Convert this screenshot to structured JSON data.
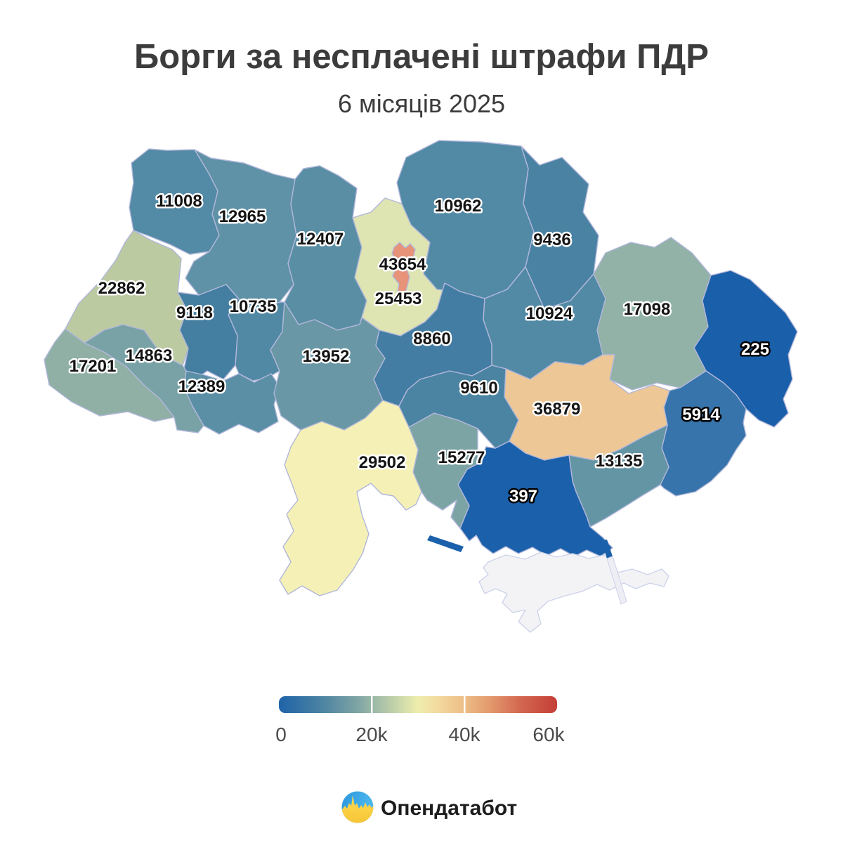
{
  "title": "Борги за несплачені штрафи ПДР",
  "subtitle": "6 місяців 2025",
  "chart_data": {
    "type": "heatmap",
    "variant": "choropleth-map-of-ukraine-oblasts",
    "title": "Борги за несплачені штрафи ПДР",
    "subtitle": "6 місяців 2025",
    "legend_position": "bottom-center",
    "regions": [
      {
        "id": "volyn",
        "value": 11008,
        "color": "#538aa5",
        "dark_bg": false
      },
      {
        "id": "rivne",
        "value": 12965,
        "color": "#5f92a6",
        "dark_bg": false
      },
      {
        "id": "zhytomyr",
        "value": 12407,
        "color": "#5a8ea5",
        "dark_bg": false
      },
      {
        "id": "kyiv-oblast",
        "value": 25453,
        "color": "#dee4b2",
        "dark_bg": false
      },
      {
        "id": "kyiv-city",
        "value": 43654,
        "color": "#e6937a",
        "dark_bg": false
      },
      {
        "id": "chernihiv",
        "value": 10962,
        "color": "#528aa6",
        "dark_bg": false
      },
      {
        "id": "sumy",
        "value": 9436,
        "color": "#4a82a3",
        "dark_bg": false
      },
      {
        "id": "lviv",
        "value": 22862,
        "color": "#bccaa2",
        "dark_bg": false
      },
      {
        "id": "ternopil",
        "value": 9118,
        "color": "#447ea1",
        "dark_bg": false
      },
      {
        "id": "khmelnytskyi",
        "value": 10735,
        "color": "#5189a5",
        "dark_bg": false
      },
      {
        "id": "zakarpattia",
        "value": 17201,
        "color": "#90b0a6",
        "dark_bg": false
      },
      {
        "id": "ivano-frankivsk",
        "value": 14863,
        "color": "#79a2a6",
        "dark_bg": false
      },
      {
        "id": "chernivtsi",
        "value": 12389,
        "color": "#5a8fa6",
        "dark_bg": false
      },
      {
        "id": "vinnytsia",
        "value": 13952,
        "color": "#6997a5",
        "dark_bg": false
      },
      {
        "id": "cherkasy",
        "value": 8860,
        "color": "#437da3",
        "dark_bg": false
      },
      {
        "id": "poltava",
        "value": 10924,
        "color": "#528aa5",
        "dark_bg": false
      },
      {
        "id": "kharkiv",
        "value": 17098,
        "color": "#92b1a7",
        "dark_bg": false
      },
      {
        "id": "luhansk",
        "value": 225,
        "color": "#1a5fa9",
        "dark_bg": true
      },
      {
        "id": "donetsk",
        "value": 5914,
        "color": "#3674ab",
        "dark_bg": true
      },
      {
        "id": "dnipropetrovsk",
        "value": 36879,
        "color": "#edc795",
        "dark_bg": false
      },
      {
        "id": "zaporizhzhia",
        "value": 13135,
        "color": "#6495a5",
        "dark_bg": false
      },
      {
        "id": "kherson",
        "value": 397,
        "color": "#1b60aa",
        "dark_bg": true
      },
      {
        "id": "mykolaiv",
        "value": 15277,
        "color": "#7da4a5",
        "dark_bg": false
      },
      {
        "id": "odesa",
        "value": 29502,
        "color": "#f5f1b6",
        "dark_bg": false
      },
      {
        "id": "kirovohrad",
        "value": 9610,
        "color": "#4b84a3",
        "dark_bg": false
      }
    ],
    "no_data": [
      {
        "id": "crimea",
        "value": null,
        "color": "#f3f3f6"
      }
    ],
    "colorbar": {
      "range": [
        0,
        60000
      ],
      "ticks": [
        "0",
        "20k",
        "40k",
        "60k"
      ],
      "gradient_colors": [
        "#1f63a9",
        "#4a82a2",
        "#7da4a5",
        "#a5bfa7",
        "#cfdaab",
        "#eeedac",
        "#f3da9e",
        "#ecbc85",
        "#e3996c",
        "#d36650",
        "#c43e37"
      ]
    }
  },
  "legend": {
    "ticks": [
      "0",
      "20k",
      "40k",
      "60k"
    ]
  },
  "logo": {
    "text": "Опендатабот",
    "blue": "#2e9fe2",
    "yellow": "#ffd84a"
  },
  "colors": {
    "background": "#ffffff",
    "border": "#b1b7da",
    "crimea_border": "#cdd2ea",
    "title_text": "#3c3c3c",
    "label_dark": "#141414",
    "label_light": "#ffffff"
  }
}
